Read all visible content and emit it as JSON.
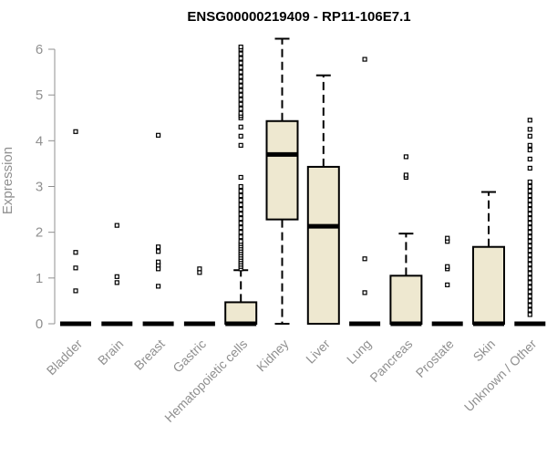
{
  "chart_data": {
    "type": "boxplot",
    "title": "ENSG00000219409 - RP11-106E7.1",
    "xlabel": "",
    "ylabel": "Expression",
    "ylim": [
      0,
      6.2
    ],
    "yticks": [
      0,
      1,
      2,
      3,
      4,
      5,
      6
    ],
    "box_fill": "#EEE8D0",
    "box_stroke": "#000000",
    "axis_color": "#909090",
    "categories": [
      "Bladder",
      "Brain",
      "Breast",
      "Gastric",
      "Hematopoietic cells",
      "Kidney",
      "Liver",
      "Lung",
      "Pancreas",
      "Prostate",
      "Skin",
      "Unknown / Other"
    ],
    "boxes": [
      {
        "label": "Bladder",
        "whisker_low": 0,
        "q1": 0,
        "median": 0,
        "q3": 0,
        "whisker_high": 0,
        "outliers": [
          0.72,
          1.22,
          1.56,
          4.2
        ]
      },
      {
        "label": "Brain",
        "whisker_low": 0,
        "q1": 0,
        "median": 0,
        "q3": 0,
        "whisker_high": 0,
        "outliers": [
          0.9,
          1.03,
          2.15
        ]
      },
      {
        "label": "Breast",
        "whisker_low": 0,
        "q1": 0,
        "median": 0,
        "q3": 0,
        "whisker_high": 0,
        "outliers": [
          0.82,
          1.2,
          1.28,
          1.35,
          1.58,
          1.68,
          4.12
        ]
      },
      {
        "label": "Gastric",
        "whisker_low": 0,
        "q1": 0,
        "median": 0,
        "q3": 0,
        "whisker_high": 0,
        "outliers": [
          1.12,
          1.2
        ]
      },
      {
        "label": "Hematopoietic cells",
        "whisker_low": 0,
        "q1": 0,
        "median": 0,
        "q3": 0.47,
        "whisker_high": 1.17,
        "outliers": [
          1.2,
          1.25,
          1.3,
          1.35,
          1.4,
          1.45,
          1.5,
          1.55,
          1.6,
          1.65,
          1.7,
          1.75,
          1.8,
          1.9,
          2.0,
          2.1,
          2.2,
          2.3,
          2.4,
          2.5,
          2.6,
          2.7,
          2.8,
          2.9,
          3.0,
          3.2,
          3.9,
          4.1,
          4.3,
          4.5,
          4.55,
          4.6,
          4.7,
          4.8,
          4.9,
          5.0,
          5.1,
          5.2,
          5.3,
          5.4,
          5.5,
          5.6,
          5.7,
          5.8,
          5.9,
          6.0,
          6.05
        ]
      },
      {
        "label": "Kidney",
        "whisker_low": 0,
        "q1": 2.28,
        "median": 3.7,
        "q3": 4.43,
        "whisker_high": 6.23,
        "outliers": []
      },
      {
        "label": "Liver",
        "whisker_low": 0,
        "q1": 0,
        "median": 2.13,
        "q3": 3.43,
        "whisker_high": 5.43,
        "outliers": []
      },
      {
        "label": "Lung",
        "whisker_low": 0,
        "q1": 0,
        "median": 0,
        "q3": 0,
        "whisker_high": 0,
        "outliers": [
          0.68,
          1.42,
          5.78
        ]
      },
      {
        "label": "Pancreas",
        "whisker_low": 0,
        "q1": 0,
        "median": 0,
        "q3": 1.05,
        "whisker_high": 1.97,
        "outliers": [
          3.2,
          3.25,
          3.65
        ]
      },
      {
        "label": "Prostate",
        "whisker_low": 0,
        "q1": 0,
        "median": 0,
        "q3": 0,
        "whisker_high": 0,
        "outliers": [
          0.85,
          1.2,
          1.25,
          1.8,
          1.87
        ]
      },
      {
        "label": "Skin",
        "whisker_low": 0,
        "q1": 0,
        "median": 0,
        "q3": 1.68,
        "whisker_high": 2.88,
        "outliers": []
      },
      {
        "label": "Unknown / Other",
        "whisker_low": 0,
        "q1": 0,
        "median": 0,
        "q3": 0,
        "whisker_high": 0,
        "outliers": [
          0.2,
          0.3,
          0.4,
          0.5,
          0.6,
          0.7,
          0.8,
          0.9,
          1.0,
          1.1,
          1.2,
          1.3,
          1.4,
          1.5,
          1.6,
          1.7,
          1.8,
          1.9,
          2.0,
          2.1,
          2.2,
          2.3,
          2.4,
          2.5,
          2.6,
          2.7,
          2.8,
          2.9,
          3.0,
          3.1,
          3.4,
          3.6,
          3.8,
          3.9,
          4.1,
          4.25,
          4.45
        ]
      }
    ]
  }
}
